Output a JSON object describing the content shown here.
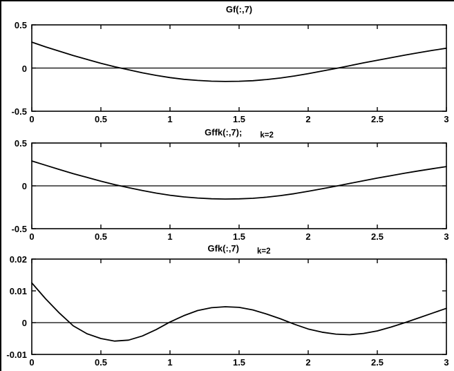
{
  "figure": {
    "background": "#ffffff",
    "line_color": "#000000"
  },
  "chart_data": [
    {
      "type": "line",
      "title": "Gf(:,7)",
      "annotation": "",
      "xlabel": "",
      "ylabel": "",
      "xlim": [
        0,
        3
      ],
      "ylim": [
        -0.5,
        0.5
      ],
      "xticks": [
        0,
        0.5,
        1,
        1.5,
        2,
        2.5,
        3
      ],
      "yticks": [
        -0.5,
        0,
        0.5
      ],
      "grid": false,
      "zero_line": true,
      "x": [
        0,
        0.1,
        0.2,
        0.3,
        0.4,
        0.5,
        0.6,
        0.7,
        0.8,
        0.9,
        1,
        1.1,
        1.2,
        1.3,
        1.4,
        1.5,
        1.6,
        1.7,
        1.8,
        1.9,
        2,
        2.1,
        2.2,
        2.3,
        2.4,
        2.5,
        2.6,
        2.7,
        2.8,
        2.9,
        3
      ],
      "y": [
        0.3,
        0.245,
        0.195,
        0.145,
        0.1,
        0.055,
        0.015,
        -0.02,
        -0.055,
        -0.085,
        -0.11,
        -0.13,
        -0.143,
        -0.152,
        -0.155,
        -0.153,
        -0.146,
        -0.133,
        -0.115,
        -0.092,
        -0.065,
        -0.035,
        -0.005,
        0.027,
        0.06,
        0.09,
        0.12,
        0.15,
        0.178,
        0.205,
        0.23
      ]
    },
    {
      "type": "line",
      "title": "Gffk(:,7);",
      "annotation": "k=2",
      "xlabel": "",
      "ylabel": "",
      "xlim": [
        0,
        3
      ],
      "ylim": [
        -0.5,
        0.5
      ],
      "xticks": [
        0,
        0.5,
        1,
        1.5,
        2,
        2.5,
        3
      ],
      "yticks": [
        -0.5,
        0,
        0.5
      ],
      "grid": false,
      "zero_line": true,
      "x": [
        0,
        0.1,
        0.2,
        0.3,
        0.4,
        0.5,
        0.6,
        0.7,
        0.8,
        0.9,
        1,
        1.1,
        1.2,
        1.3,
        1.4,
        1.5,
        1.6,
        1.7,
        1.8,
        1.9,
        2,
        2.1,
        2.2,
        2.3,
        2.4,
        2.5,
        2.6,
        2.7,
        2.8,
        2.9,
        3
      ],
      "y": [
        0.29,
        0.24,
        0.19,
        0.142,
        0.098,
        0.054,
        0.014,
        -0.021,
        -0.055,
        -0.085,
        -0.11,
        -0.129,
        -0.142,
        -0.151,
        -0.154,
        -0.152,
        -0.145,
        -0.132,
        -0.114,
        -0.091,
        -0.064,
        -0.034,
        -0.004,
        0.028,
        0.06,
        0.09,
        0.119,
        0.148,
        0.175,
        0.2,
        0.225
      ]
    },
    {
      "type": "line",
      "title": "Gfk(:,7)",
      "annotation": "k=2",
      "xlabel": "",
      "ylabel": "",
      "xlim": [
        0,
        3
      ],
      "ylim": [
        -0.01,
        0.02
      ],
      "xticks": [
        0,
        0.5,
        1,
        1.5,
        2,
        2.5,
        3
      ],
      "yticks": [
        -0.01,
        0,
        0.01,
        0.02
      ],
      "grid": false,
      "zero_line": true,
      "x": [
        0,
        0.1,
        0.2,
        0.3,
        0.4,
        0.5,
        0.6,
        0.7,
        0.8,
        0.9,
        1,
        1.1,
        1.2,
        1.3,
        1.4,
        1.5,
        1.6,
        1.7,
        1.8,
        1.9,
        2,
        2.1,
        2.2,
        2.3,
        2.4,
        2.5,
        2.6,
        2.7,
        2.8,
        2.9,
        3
      ],
      "y": [
        0.0125,
        0.0075,
        0.003,
        -0.001,
        -0.0035,
        -0.005,
        -0.0058,
        -0.0055,
        -0.0042,
        -0.0022,
        0.0002,
        0.0022,
        0.0038,
        0.0047,
        0.005,
        0.0048,
        0.004,
        0.0027,
        0.0012,
        -0.0005,
        -0.002,
        -0.003,
        -0.0036,
        -0.0038,
        -0.0034,
        -0.0026,
        -0.0014,
        0,
        0.0015,
        0.003,
        0.0045
      ]
    }
  ]
}
